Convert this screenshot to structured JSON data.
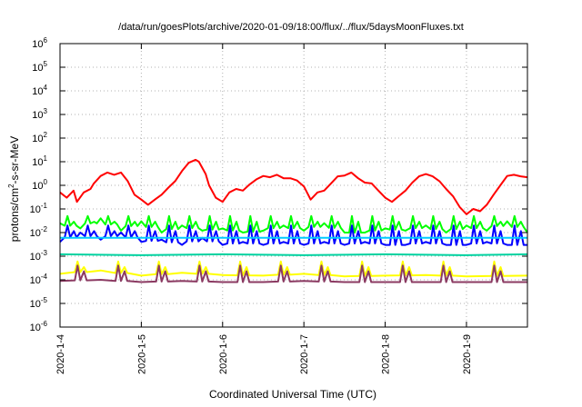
{
  "chart_data": {
    "type": "line",
    "title": "/data/run/goesPlots/archive/2020-01-09/18:00/flux/../flux/5daysMoonFluxes.txt",
    "xlabel": "Coordinated Universal Time (UTC)",
    "ylabel_parts": [
      "protons/cm",
      "2",
      "-s-sr-MeV"
    ],
    "y_scale": "log",
    "ylim": [
      1e-06,
      1000000.0
    ],
    "y_ticks": [
      {
        "base": "10",
        "exp": "6",
        "value": 1000000.0
      },
      {
        "base": "10",
        "exp": "5",
        "value": 100000.0
      },
      {
        "base": "10",
        "exp": "4",
        "value": 10000.0
      },
      {
        "base": "10",
        "exp": "3",
        "value": 1000.0
      },
      {
        "base": "10",
        "exp": "2",
        "value": 100.0
      },
      {
        "base": "10",
        "exp": "1",
        "value": 10.0
      },
      {
        "base": "10",
        "exp": "0",
        "value": 1.0
      },
      {
        "base": "10",
        "exp": "-1",
        "value": 0.1
      },
      {
        "base": "10",
        "exp": "-2",
        "value": 0.01
      },
      {
        "base": "10",
        "exp": "-3",
        "value": 0.001
      },
      {
        "base": "10",
        "exp": "-4",
        "value": 0.0001
      },
      {
        "base": "10",
        "exp": "-5",
        "value": 1e-05
      },
      {
        "base": "10",
        "exp": "-6",
        "value": 1e-06
      }
    ],
    "x_ticks": [
      "2020-1-4",
      "2020-1-5",
      "2020-1-6",
      "2020-1-7",
      "2020-1-8",
      "2020-1-9"
    ],
    "x_tick_dates": [
      "2020-01-04T00:00",
      "2020-01-05T00:00",
      "2020-01-06T00:00",
      "2020-01-07T00:00",
      "2020-01-08T00:00",
      "2020-01-09T00:00"
    ],
    "xlim": [
      "2020-01-04T00:00",
      "2020-01-09T18:00"
    ],
    "grid": true,
    "series": [
      {
        "color": "#ff0000",
        "x": [
          "2020-01-04T00:00",
          "2020-01-04T02:00",
          "2020-01-04T04:00",
          "2020-01-04T05:00",
          "2020-01-04T07:00",
          "2020-01-04T09:00",
          "2020-01-04T10:00",
          "2020-01-04T12:00",
          "2020-01-04T14:00",
          "2020-01-04T16:00",
          "2020-01-04T18:00",
          "2020-01-04T20:00",
          "2020-01-04T22:00",
          "2020-01-05T00:00",
          "2020-01-05T02:00",
          "2020-01-05T04:00",
          "2020-01-05T06:00",
          "2020-01-05T08:00",
          "2020-01-05T10:00",
          "2020-01-05T12:00",
          "2020-01-05T14:00",
          "2020-01-05T16:00",
          "2020-01-05T17:00",
          "2020-01-05T19:00",
          "2020-01-05T20:00",
          "2020-01-05T22:00",
          "2020-01-06T00:00",
          "2020-01-06T02:00",
          "2020-01-06T04:00",
          "2020-01-06T06:00",
          "2020-01-06T08:00",
          "2020-01-06T10:00",
          "2020-01-06T12:00",
          "2020-01-06T14:00",
          "2020-01-06T16:00",
          "2020-01-06T18:00",
          "2020-01-06T20:00",
          "2020-01-06T22:00",
          "2020-01-07T00:00",
          "2020-01-07T02:00",
          "2020-01-07T04:00",
          "2020-01-07T06:00",
          "2020-01-07T08:00",
          "2020-01-07T10:00",
          "2020-01-07T12:00",
          "2020-01-07T14:00",
          "2020-01-07T16:00",
          "2020-01-07T18:00",
          "2020-01-07T20:00",
          "2020-01-07T22:00",
          "2020-01-08T00:00",
          "2020-01-08T02:00",
          "2020-01-08T04:00",
          "2020-01-08T06:00",
          "2020-01-08T08:00",
          "2020-01-08T10:00",
          "2020-01-08T12:00",
          "2020-01-08T14:00",
          "2020-01-08T16:00",
          "2020-01-08T18:00",
          "2020-01-08T20:00",
          "2020-01-08T22:00",
          "2020-01-09T00:00",
          "2020-01-09T02:00",
          "2020-01-09T04:00",
          "2020-01-09T06:00",
          "2020-01-09T08:00",
          "2020-01-09T10:00",
          "2020-01-09T12:00",
          "2020-01-09T14:00",
          "2020-01-09T16:00",
          "2020-01-09T18:00"
        ],
        "y": [
          0.5,
          0.3,
          0.6,
          0.2,
          0.5,
          0.7,
          1.2,
          2.5,
          3.5,
          2.8,
          3.5,
          1.5,
          0.4,
          0.25,
          0.15,
          0.25,
          0.4,
          0.8,
          1.5,
          4,
          9,
          12,
          10,
          3,
          1,
          0.3,
          0.2,
          0.5,
          0.7,
          0.6,
          1.1,
          1.8,
          2.5,
          2.2,
          2.8,
          2,
          2,
          1.6,
          0.9,
          0.25,
          0.5,
          0.6,
          1.2,
          2.4,
          2.6,
          3.5,
          2,
          1.3,
          1.2,
          0.6,
          0.3,
          0.2,
          0.35,
          0.6,
          1.3,
          2.4,
          3,
          2.4,
          1.5,
          0.7,
          0.35,
          0.12,
          0.06,
          0.1,
          0.08,
          0.15,
          0.4,
          1,
          2.5,
          2.8,
          2.4,
          2.2
        ]
      },
      {
        "color": "#00ff00",
        "x": [
          "2020-01-04T00:00",
          "2020-01-04T06:00",
          "2020-01-04T12:00",
          "2020-01-04T18:00",
          "2020-01-05T00:00",
          "2020-01-05T06:00",
          "2020-01-05T12:00",
          "2020-01-05T18:00",
          "2020-01-06T00:00",
          "2020-01-06T06:00",
          "2020-01-06T12:00",
          "2020-01-06T18:00",
          "2020-01-07T00:00",
          "2020-01-07T06:00",
          "2020-01-07T12:00",
          "2020-01-07T18:00",
          "2020-01-08T00:00",
          "2020-01-08T06:00",
          "2020-01-08T12:00",
          "2020-01-08T18:00",
          "2020-01-09T00:00",
          "2020-01-09T06:00",
          "2020-01-09T12:00",
          "2020-01-09T18:00"
        ],
        "y": [
          0.025,
          0.015,
          0.04,
          0.012,
          0.03,
          0.01,
          0.02,
          0.012,
          0.015,
          0.01,
          0.012,
          0.02,
          0.012,
          0.025,
          0.01,
          0.01,
          0.015,
          0.012,
          0.02,
          0.01,
          0.02,
          0.012,
          0.03,
          0.01
        ],
        "spike": 0.05
      },
      {
        "color": "#0000ff",
        "x": [
          "2020-01-04T00:00",
          "2020-01-04T06:00",
          "2020-01-04T12:00",
          "2020-01-04T18:00",
          "2020-01-05T00:00",
          "2020-01-05T06:00",
          "2020-01-05T12:00",
          "2020-01-05T18:00",
          "2020-01-06T00:00",
          "2020-01-06T06:00",
          "2020-01-06T12:00",
          "2020-01-06T18:00",
          "2020-01-07T00:00",
          "2020-01-07T06:00",
          "2020-01-07T12:00",
          "2020-01-07T18:00",
          "2020-01-08T00:00",
          "2020-01-08T06:00",
          "2020-01-08T12:00",
          "2020-01-08T18:00",
          "2020-01-09T00:00",
          "2020-01-09T06:00",
          "2020-01-09T12:00",
          "2020-01-09T18:00"
        ],
        "y": [
          0.004,
          0.01,
          0.005,
          0.01,
          0.004,
          0.005,
          0.003,
          0.006,
          0.003,
          0.004,
          0.003,
          0.004,
          0.003,
          0.004,
          0.003,
          0.004,
          0.003,
          0.003,
          0.004,
          0.003,
          0.003,
          0.004,
          0.003,
          0.003
        ],
        "spike": 0.02
      },
      {
        "color": "#00ccff",
        "x": [
          "2020-01-04T00:00",
          "2020-01-09T18:00"
        ],
        "y": [
          0.006,
          0.006
        ]
      },
      {
        "color": "#00d2a0",
        "x": [
          "2020-01-04T00:00",
          "2020-01-05T00:00",
          "2020-01-06T00:00",
          "2020-01-07T00:00",
          "2020-01-08T00:00",
          "2020-01-09T00:00",
          "2020-01-09T18:00"
        ],
        "y": [
          0.0012,
          0.0011,
          0.0012,
          0.0011,
          0.0012,
          0.0011,
          0.0012
        ]
      },
      {
        "color": "#ffff00",
        "x": [
          "2020-01-04T00:00",
          "2020-01-04T12:00",
          "2020-01-05T00:00",
          "2020-01-05T12:00",
          "2020-01-06T00:00",
          "2020-01-06T12:00",
          "2020-01-07T00:00",
          "2020-01-07T12:00",
          "2020-01-08T00:00",
          "2020-01-08T12:00",
          "2020-01-09T00:00",
          "2020-01-09T18:00"
        ],
        "y": [
          0.00018,
          0.00025,
          0.00015,
          0.0002,
          0.00016,
          0.00015,
          0.00018,
          0.00014,
          0.00015,
          0.00016,
          0.00014,
          0.00015
        ],
        "spike": 0.0006
      },
      {
        "color": "#8b3a62",
        "x": [
          "2020-01-04T00:00",
          "2020-01-04T12:00",
          "2020-01-05T00:00",
          "2020-01-05T12:00",
          "2020-01-06T00:00",
          "2020-01-06T12:00",
          "2020-01-07T00:00",
          "2020-01-07T12:00",
          "2020-01-08T00:00",
          "2020-01-08T12:00",
          "2020-01-09T00:00",
          "2020-01-09T18:00"
        ],
        "y": [
          9e-05,
          0.0001,
          8e-05,
          9e-05,
          8e-05,
          8e-05,
          9e-05,
          8e-05,
          8e-05,
          8e-05,
          8e-05,
          8e-05
        ],
        "spike": 0.0004
      }
    ]
  }
}
